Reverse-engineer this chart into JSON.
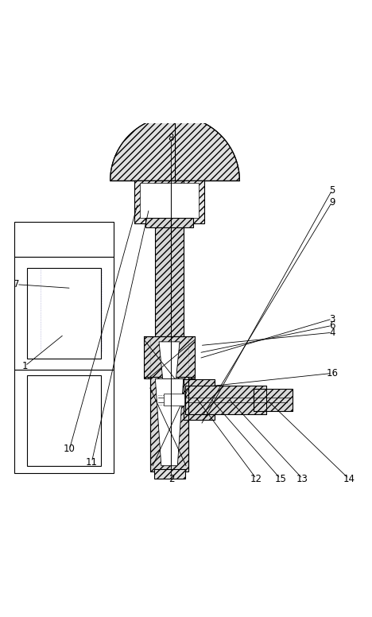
{
  "bg_color": "#ffffff",
  "line_color": "#000000",
  "label_color": "#000000",
  "fig_width": 4.68,
  "fig_height": 7.76,
  "dpi": 100
}
